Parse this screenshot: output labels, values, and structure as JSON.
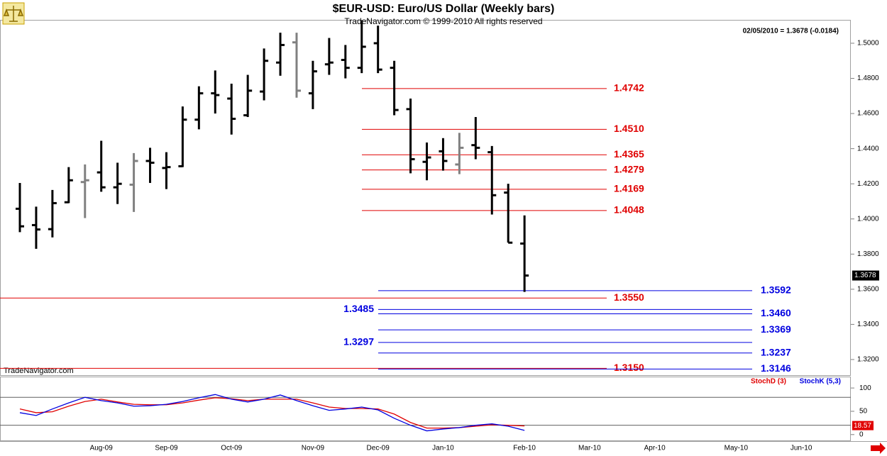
{
  "chart_data": [
    {
      "type": "ohlc",
      "title": "$EUR-USD:  Euro/US Dollar  (Weekly bars)",
      "subtitle": "TradeNavigator.com © 1999-2010 All rights reserved",
      "info": "02/05/2010 = 1.3678 (-0.0184)",
      "watermark": "TradeNavigator.com",
      "categories": [
        null,
        null,
        null,
        null,
        null,
        "Aug-09",
        null,
        null,
        null,
        "Sep-09",
        null,
        null,
        null,
        "Oct-09",
        null,
        null,
        null,
        null,
        "Nov-09",
        null,
        null,
        null,
        "Dec-09",
        null,
        null,
        null,
        "Jan-10",
        null,
        null,
        null,
        null,
        "Feb-10",
        null,
        null,
        null,
        "Mar-10",
        null,
        null,
        null,
        "Apr-10",
        null,
        null,
        null,
        null,
        "May-10",
        null,
        null,
        null,
        "Jun-10",
        null,
        null,
        null
      ],
      "open": [
        1.4058,
        1.3965,
        1.3942,
        1.4095,
        1.421,
        1.4265,
        1.418,
        1.4195,
        1.433,
        1.429,
        1.43,
        1.4565,
        1.4715,
        1.4685,
        1.459,
        1.4725,
        1.489,
        1.5005,
        1.4715,
        1.488,
        1.4905,
        1.486,
        1.5,
        1.486,
        1.4625,
        1.4325,
        1.4385,
        1.431,
        1.442,
        1.438,
        1.415,
        1.386,
        null,
        null,
        null,
        null,
        null,
        null,
        null,
        null,
        null,
        null,
        null,
        null,
        null,
        null,
        null,
        null,
        null,
        null,
        null,
        null
      ],
      "high": [
        1.4205,
        1.407,
        1.4165,
        1.4295,
        1.431,
        1.4445,
        1.432,
        1.4375,
        1.4405,
        1.438,
        1.464,
        1.4755,
        1.4845,
        1.477,
        1.482,
        1.497,
        1.506,
        1.506,
        1.49,
        1.503,
        1.499,
        1.513,
        1.51,
        1.49,
        1.4685,
        1.4435,
        1.446,
        1.449,
        1.458,
        1.4415,
        1.42,
        1.402,
        null,
        null,
        null,
        null,
        null,
        null,
        null,
        null,
        null,
        null,
        null,
        null,
        null,
        null,
        null,
        null,
        null,
        null,
        null,
        null
      ],
      "low": [
        1.3925,
        1.383,
        1.3895,
        1.409,
        1.4005,
        1.4155,
        1.4085,
        1.404,
        1.4205,
        1.417,
        1.4295,
        1.451,
        1.46,
        1.448,
        1.458,
        1.4675,
        1.4815,
        1.469,
        1.4625,
        1.482,
        1.48,
        1.483,
        1.483,
        1.459,
        1.426,
        1.422,
        1.4275,
        1.4255,
        1.434,
        1.4025,
        1.3865,
        1.3585,
        null,
        null,
        null,
        null,
        null,
        null,
        null,
        null,
        null,
        null,
        null,
        null,
        null,
        null,
        null,
        null,
        null,
        null,
        null,
        null
      ],
      "close": [
        1.3958,
        1.394,
        1.409,
        1.422,
        1.422,
        1.418,
        1.42,
        1.433,
        1.432,
        1.4295,
        1.4565,
        1.4715,
        1.4705,
        1.457,
        1.473,
        1.49,
        1.499,
        1.473,
        1.484,
        1.489,
        1.486,
        1.498,
        1.485,
        1.462,
        1.434,
        1.435,
        1.433,
        1.4405,
        1.4405,
        1.4135,
        1.3865,
        1.3678,
        null,
        null,
        null,
        null,
        null,
        null,
        null,
        null,
        null,
        null,
        null,
        null,
        null,
        null,
        null,
        null,
        null,
        null,
        null,
        null
      ],
      "colors": [
        "#000000",
        "#000000",
        "#000000",
        "#000000",
        "#808080",
        "#000000",
        "#000000",
        "#808080",
        "#000000",
        "#000000",
        "#000000",
        "#000000",
        "#000000",
        "#000000",
        "#000000",
        "#000000",
        "#000000",
        "#808080",
        "#000000",
        "#000000",
        "#000000",
        "#000000",
        "#000000",
        "#000000",
        "#000000",
        "#000000",
        "#000000",
        "#808080",
        "#000000",
        "#000000",
        "#000000",
        "#000000",
        null,
        null,
        null,
        null,
        null,
        null,
        null,
        null,
        null,
        null,
        null,
        null,
        null,
        null,
        null,
        null,
        null,
        null,
        null,
        null
      ],
      "ylim": [
        1.3107,
        1.5129
      ],
      "yticks": [
        {
          "value": 1.32,
          "label": "1.3200"
        },
        {
          "value": 1.34,
          "label": "1.3400"
        },
        {
          "value": 1.36,
          "label": "1.3600"
        },
        {
          "value": 1.38,
          "label": "1.3800"
        },
        {
          "value": 1.4,
          "label": "1.4000"
        },
        {
          "value": 1.42,
          "label": "1.4200"
        },
        {
          "value": 1.44,
          "label": "1.4400"
        },
        {
          "value": 1.46,
          "label": "1.4600"
        },
        {
          "value": 1.48,
          "label": "1.4800"
        },
        {
          "value": 1.5,
          "label": "1.5000"
        }
      ],
      "levels": {
        "red": [
          {
            "value": 1.4742,
            "label": "1.4742"
          },
          {
            "value": 1.451,
            "label": "1.4510"
          },
          {
            "value": 1.4365,
            "label": "1.4365"
          },
          {
            "value": 1.4279,
            "label": "1.4279"
          },
          {
            "value": 1.4169,
            "label": "1.4169"
          },
          {
            "value": 1.4048,
            "label": "1.4048"
          }
        ],
        "red_extended": [
          {
            "value": 1.355,
            "label": "1.3550"
          },
          {
            "value": 1.315,
            "label": "1.3150"
          }
        ],
        "blue": [
          {
            "value": 1.3592,
            "label": "1.3592"
          },
          {
            "value": 1.346,
            "label": "1.3460"
          },
          {
            "value": 1.3369,
            "label": "1.3369"
          },
          {
            "value": 1.3237,
            "label": "1.3237"
          },
          {
            "value": 1.3146,
            "label": "1.3146"
          }
        ],
        "blue_left_label": [
          {
            "value": 1.3485,
            "label": "1.3485"
          },
          {
            "value": 1.3297,
            "label": "1.3297"
          }
        ],
        "red_color": "#e00000",
        "blue_color": "#0000e0"
      }
    },
    {
      "type": "line",
      "series": [
        {
          "name": "StochD (3)",
          "color": "#e00000",
          "values": [
            55,
            47,
            49,
            61,
            71,
            76,
            70,
            65,
            64,
            64,
            68,
            74,
            79,
            77,
            73,
            76,
            76,
            76,
            68,
            59,
            56,
            56,
            55,
            44,
            26,
            14,
            14,
            15,
            18,
            21,
            20,
            18.57,
            null,
            null,
            null,
            null,
            null,
            null,
            null,
            null,
            null,
            null,
            null,
            null,
            null,
            null,
            null,
            null,
            null,
            null,
            null,
            null
          ]
        },
        {
          "name": "StochK (5,3)",
          "color": "#0000e0",
          "values": [
            47,
            41,
            55,
            68,
            80,
            73,
            68,
            61,
            62,
            65,
            71,
            79,
            86,
            76,
            70,
            76,
            85,
            73,
            62,
            52,
            55,
            59,
            53,
            35,
            20,
            8,
            12,
            15,
            20,
            23,
            18,
            9,
            null,
            null,
            null,
            null,
            null,
            null,
            null,
            null,
            null,
            null,
            null,
            null,
            null,
            null,
            null,
            null,
            null,
            null,
            null,
            null
          ]
        }
      ],
      "ylim": [
        -14,
        123
      ],
      "yticks": [
        0,
        50,
        100
      ],
      "levels": [
        80,
        20
      ]
    }
  ]
}
